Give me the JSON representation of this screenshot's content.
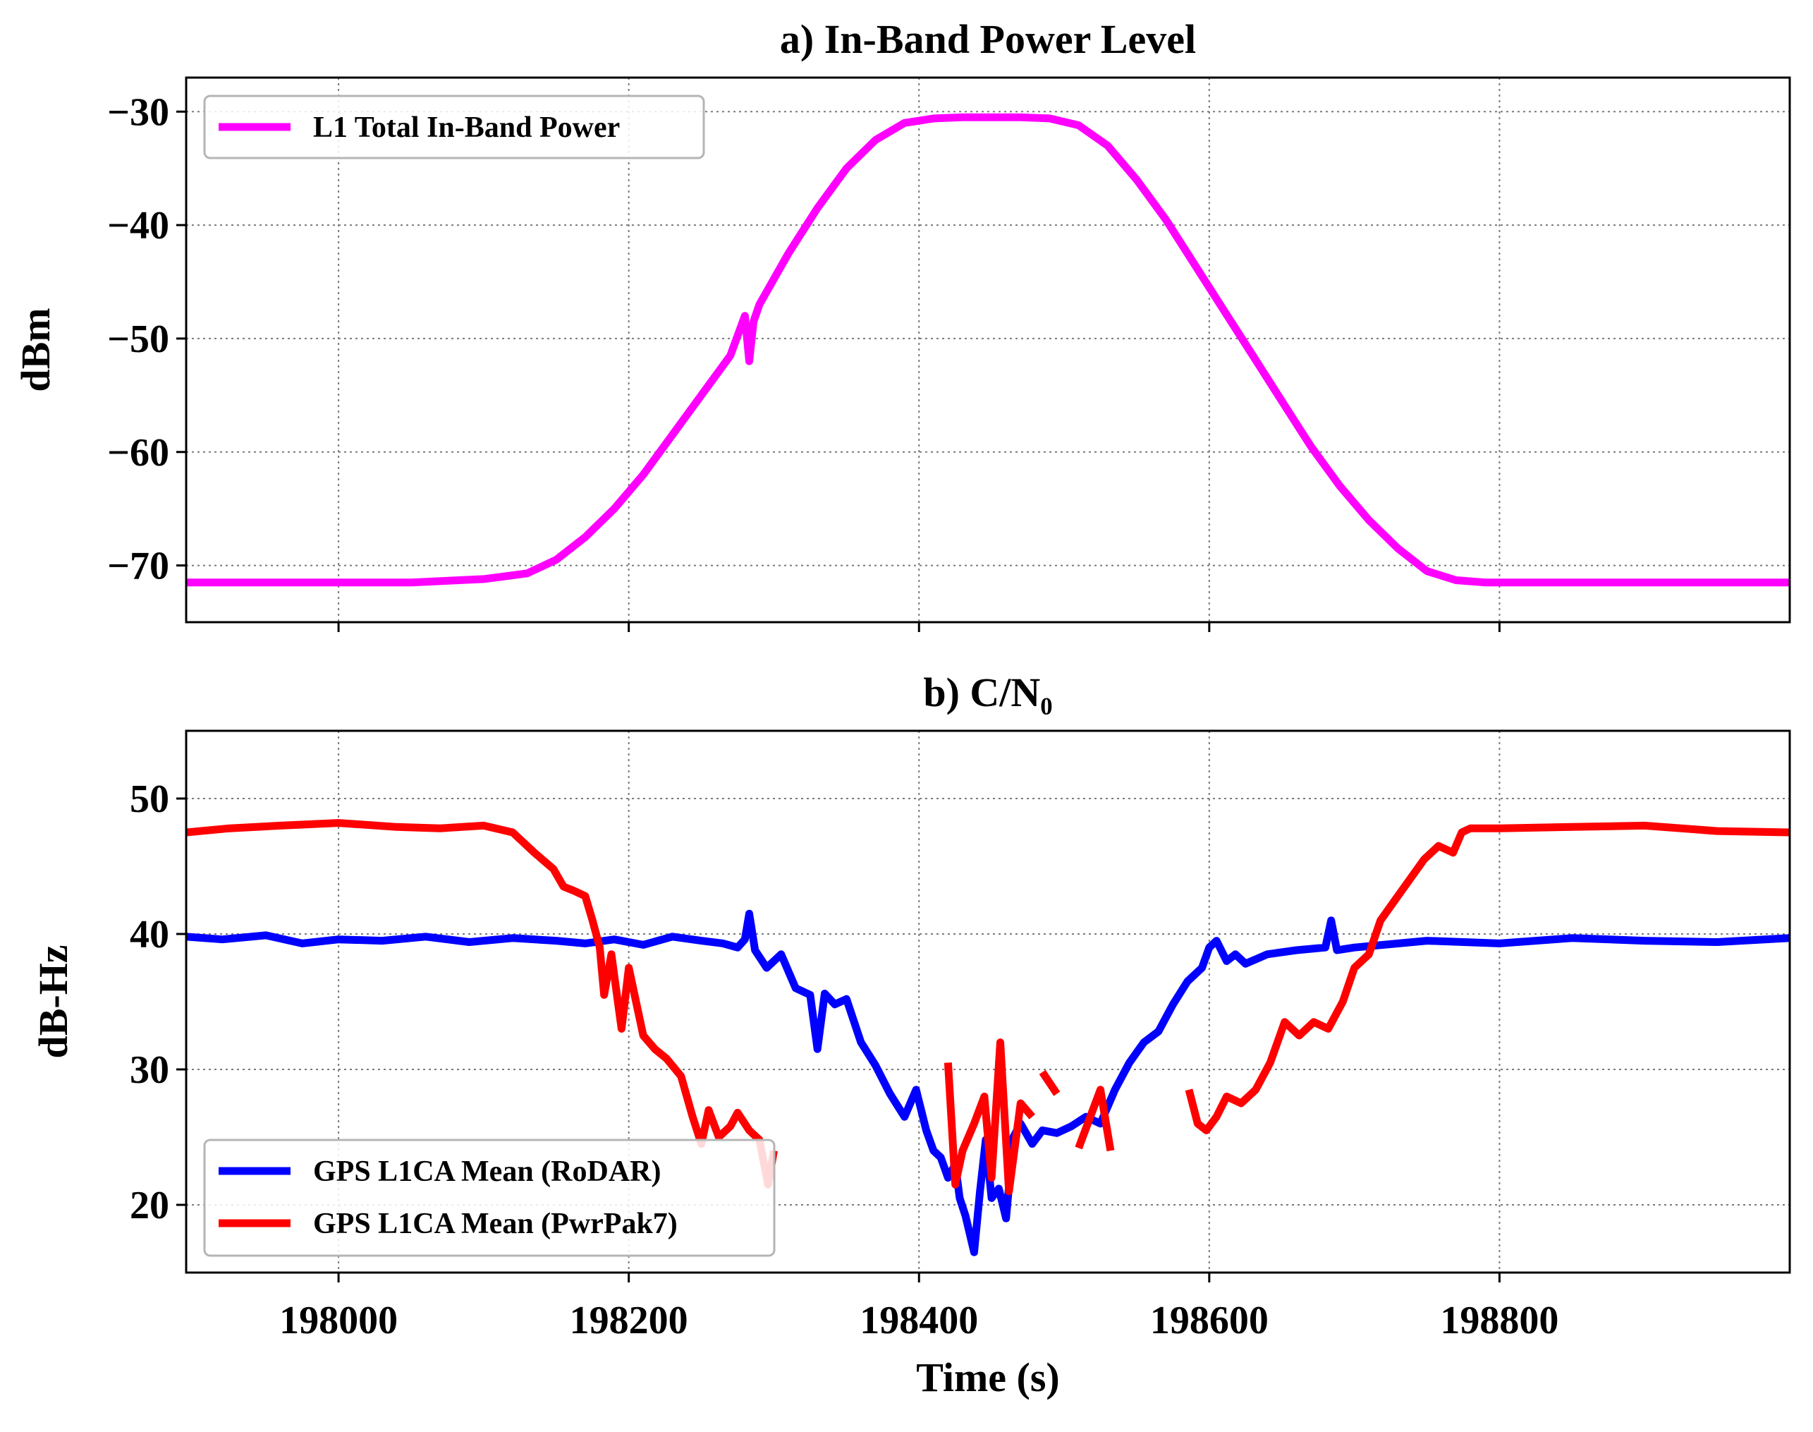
{
  "chart_data": [
    {
      "type": "line",
      "title": "a) In-Band Power Level",
      "xlabel": "",
      "ylabel": "dBm",
      "xlim": [
        197895,
        199000
      ],
      "ylim": [
        -75,
        -27
      ],
      "xticks": [
        198000,
        198200,
        198400,
        198600,
        198800
      ],
      "show_xtick_labels": false,
      "yticks": [
        -70,
        -60,
        -50,
        -40,
        -30
      ],
      "ytick_labels": [
        "−70",
        "−60",
        "−50",
        "−40",
        "−30"
      ],
      "grid": true,
      "legend_position": "top-left",
      "series": [
        {
          "name": "L1 Total In-Band Power",
          "color": "#ff00ff",
          "x": [
            197895,
            197950,
            198000,
            198050,
            198100,
            198130,
            198150,
            198170,
            198190,
            198210,
            198230,
            198250,
            198270,
            198280,
            198283,
            198286,
            198290,
            198310,
            198330,
            198350,
            198370,
            198390,
            198410,
            198430,
            198450,
            198470,
            198490,
            198510,
            198530,
            198550,
            198570,
            198590,
            198610,
            198630,
            198650,
            198670,
            198690,
            198710,
            198730,
            198750,
            198770,
            198790,
            198850,
            198900,
            198950,
            199000
          ],
          "y": [
            -71.5,
            -71.5,
            -71.5,
            -71.5,
            -71.2,
            -70.7,
            -69.5,
            -67.5,
            -65,
            -62,
            -58.5,
            -55,
            -51.5,
            -48,
            -52,
            -48.5,
            -47,
            -42.5,
            -38.5,
            -35,
            -32.5,
            -31,
            -30.6,
            -30.5,
            -30.5,
            -30.5,
            -30.6,
            -31.2,
            -33,
            -36,
            -39.5,
            -43.5,
            -47.5,
            -51.5,
            -55.5,
            -59.5,
            -63,
            -66,
            -68.5,
            -70.5,
            -71.3,
            -71.5,
            -71.5,
            -71.5,
            -71.5,
            -71.5
          ]
        }
      ]
    },
    {
      "type": "line",
      "title": "b)  C/N₀",
      "xlabel": "Time (s)",
      "ylabel": "dB-Hz",
      "xlim": [
        197895,
        199000
      ],
      "ylim": [
        15,
        55
      ],
      "xticks": [
        198000,
        198200,
        198400,
        198600,
        198800
      ],
      "xtick_labels": [
        "198000",
        "198200",
        "198400",
        "198600",
        "198800"
      ],
      "yticks": [
        20,
        30,
        40,
        50
      ],
      "ytick_labels": [
        "20",
        "30",
        "40",
        "50"
      ],
      "grid": true,
      "legend_position": "bottom-left",
      "series": [
        {
          "name": "GPS L1CA Mean (RoDAR)",
          "color": "#0000ff",
          "x": [
            197895,
            197920,
            197950,
            197975,
            198000,
            198030,
            198060,
            198090,
            198120,
            198150,
            198170,
            198190,
            198210,
            198230,
            198250,
            198265,
            198275,
            198280,
            198283,
            198287,
            198295,
            198305,
            198315,
            198325,
            198330,
            198335,
            198342,
            198350,
            198360,
            198370,
            198380,
            198390,
            198398,
            198405,
            198410,
            198415,
            198420,
            198425,
            198428,
            198432,
            198438,
            198442,
            198446,
            198450,
            198455,
            198460,
            198465,
            198470,
            198478,
            198485,
            198495,
            198505,
            198515,
            198525,
            198535,
            198545,
            198555,
            198565,
            198575,
            198585,
            198595,
            198600,
            198605,
            198612,
            198618,
            198625,
            198640,
            198660,
            198680,
            198684,
            198688,
            198700,
            198720,
            198750,
            198800,
            198850,
            198900,
            198950,
            199000
          ],
          "y": [
            39.8,
            39.6,
            39.9,
            39.3,
            39.6,
            39.5,
            39.8,
            39.4,
            39.7,
            39.5,
            39.3,
            39.6,
            39.2,
            39.8,
            39.5,
            39.3,
            39,
            39.6,
            41.5,
            38.8,
            37.5,
            38.5,
            36,
            35.5,
            31.5,
            35.6,
            34.8,
            35.2,
            32,
            30.3,
            28.2,
            26.5,
            28.5,
            25.5,
            24,
            23.5,
            22,
            23,
            20.5,
            19.2,
            16.5,
            21,
            24.8,
            20.5,
            21.2,
            19,
            25,
            26,
            24.5,
            25.5,
            25.3,
            25.8,
            26.5,
            26,
            28.5,
            30.5,
            32,
            32.8,
            34.8,
            36.5,
            37.5,
            39,
            39.5,
            38,
            38.5,
            37.8,
            38.5,
            38.8,
            39,
            41,
            38.8,
            39,
            39.2,
            39.5,
            39.3,
            39.7,
            39.5,
            39.4,
            39.7
          ]
        },
        {
          "name": "GPS L1CA Mean (PwrPak7)",
          "color": "#ff0000",
          "x": [
            197895,
            197925,
            197960,
            198000,
            198040,
            198070,
            198100,
            198120,
            198135,
            198148,
            198155,
            198162,
            198170,
            198175,
            198180,
            198183,
            198188,
            198195,
            198200,
            198210,
            198218,
            198226,
            198236,
            198244,
            198250,
            198255,
            198262,
            198270,
            198275,
            198283,
            198290,
            198296,
            198300,
            null,
            198420,
            198425,
            198430,
            198438,
            198445,
            198450,
            198456,
            198462,
            198470,
            198478,
            null,
            198485,
            198495,
            null,
            198510,
            198518,
            198525,
            198532,
            null,
            198586,
            198592,
            198598,
            198605,
            198612,
            198622,
            198632,
            198642,
            198652,
            198662,
            198672,
            198682,
            198692,
            198700,
            198710,
            198718,
            198728,
            198738,
            198748,
            198758,
            198768,
            198774,
            198780,
            198800,
            198850,
            198900,
            198950,
            199000
          ],
          "y": [
            47.5,
            47.8,
            48,
            48.2,
            47.9,
            47.8,
            48,
            47.5,
            46,
            44.8,
            43.5,
            43.2,
            42.8,
            41,
            39,
            35.5,
            38.5,
            33,
            37.5,
            32.5,
            31.5,
            30.8,
            29.5,
            26.5,
            24.5,
            27,
            25,
            25.8,
            26.8,
            25.5,
            24.8,
            21.5,
            24,
            null,
            30.5,
            21.5,
            24,
            26,
            28,
            22,
            32,
            21,
            27.5,
            26.5,
            null,
            29.8,
            28.2,
            null,
            24.2,
            26.5,
            28.5,
            24,
            null,
            28.5,
            26,
            25.5,
            26.5,
            28,
            27.5,
            28.5,
            30.5,
            33.5,
            32.5,
            33.5,
            33,
            35,
            37.5,
            38.5,
            41,
            42.5,
            44,
            45.5,
            46.5,
            46,
            47.5,
            47.8,
            47.8,
            47.9,
            48,
            47.6,
            47.5
          ]
        }
      ]
    }
  ]
}
